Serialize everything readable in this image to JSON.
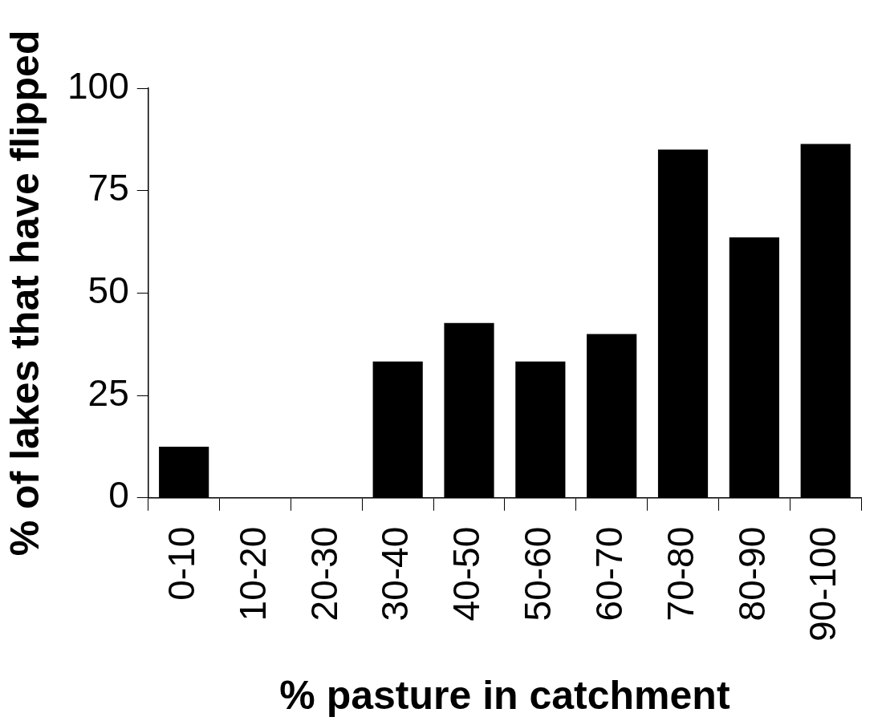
{
  "chart_data": {
    "type": "bar",
    "xlabel": "% pasture in catchment",
    "ylabel": "% of lakes that have flipped",
    "categories": [
      "0-10",
      "10-20",
      "20-30",
      "30-40",
      "40-50",
      "50-60",
      "60-70",
      "70-80",
      "80-90",
      "90-100"
    ],
    "values": [
      12.5,
      0,
      0,
      33.3,
      42.7,
      33.3,
      40,
      85,
      63.6,
      86.4
    ],
    "color": "#000000",
    "ylim": [
      0,
      100
    ],
    "yticks": [
      0,
      25,
      50,
      75,
      100
    ],
    "grid": false,
    "legend": false
  }
}
